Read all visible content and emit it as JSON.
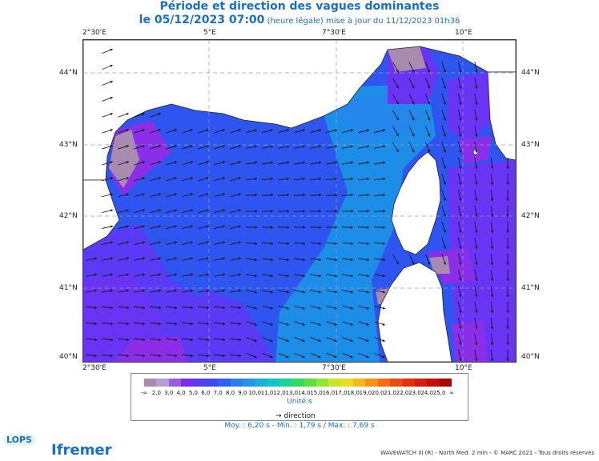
{
  "title_line1": "Période et direction des vagues dominantes",
  "title_line2_main": "le 05/12/2023 07:00",
  "title_line2_small": " (heure légale) mise à jour du 11/12/2023 01h36",
  "lon_labels": [
    "2°30'E",
    "5°E",
    "7°30'E",
    "10°E"
  ],
  "lat_labels": [
    "44°N",
    "43°N",
    "42°N",
    "41°N",
    "40°N"
  ],
  "colorbar": {
    "labels": [
      "-∞",
      "2,0",
      "3,0",
      "4,0",
      "5,0",
      "6,0",
      "7,0",
      "8,0",
      "9,0",
      "10,0",
      "11,0",
      "12,0",
      "13,0",
      "14,0",
      "15,0",
      "16,0",
      "17,0",
      "18,0",
      "19,0",
      "20,0",
      "21,0",
      "22,0",
      "23,0",
      "24,0",
      "25,0",
      "∞"
    ],
    "colors": [
      "#a98bb0",
      "#b79ed6",
      "#9b5ce0",
      "#7b2cf0",
      "#5a3af5",
      "#3f4af6",
      "#2e63f2",
      "#2a7fee",
      "#2197e8",
      "#18b0e0",
      "#10c6c6",
      "#1ad39b",
      "#2edc5e",
      "#58e23a",
      "#93e62c",
      "#c5e825",
      "#eedc1e",
      "#f7b918",
      "#f79312",
      "#f46c0e",
      "#ee4a0b",
      "#e62e09",
      "#d91a08",
      "#c70e06",
      "#b00404"
    ],
    "units": "Unité:s"
  },
  "direction_label": "direction",
  "stats": "Moy. : 6,20 s   -   Min. : 1,79 s / Max. : 7,69 s",
  "footer": "WAVEWATCH III (R) - North Med. 2 min - © MARC 2021 - Tous droits réservés",
  "logos": {
    "lops": "LOPS",
    "ifremer": "Ifremer"
  }
}
